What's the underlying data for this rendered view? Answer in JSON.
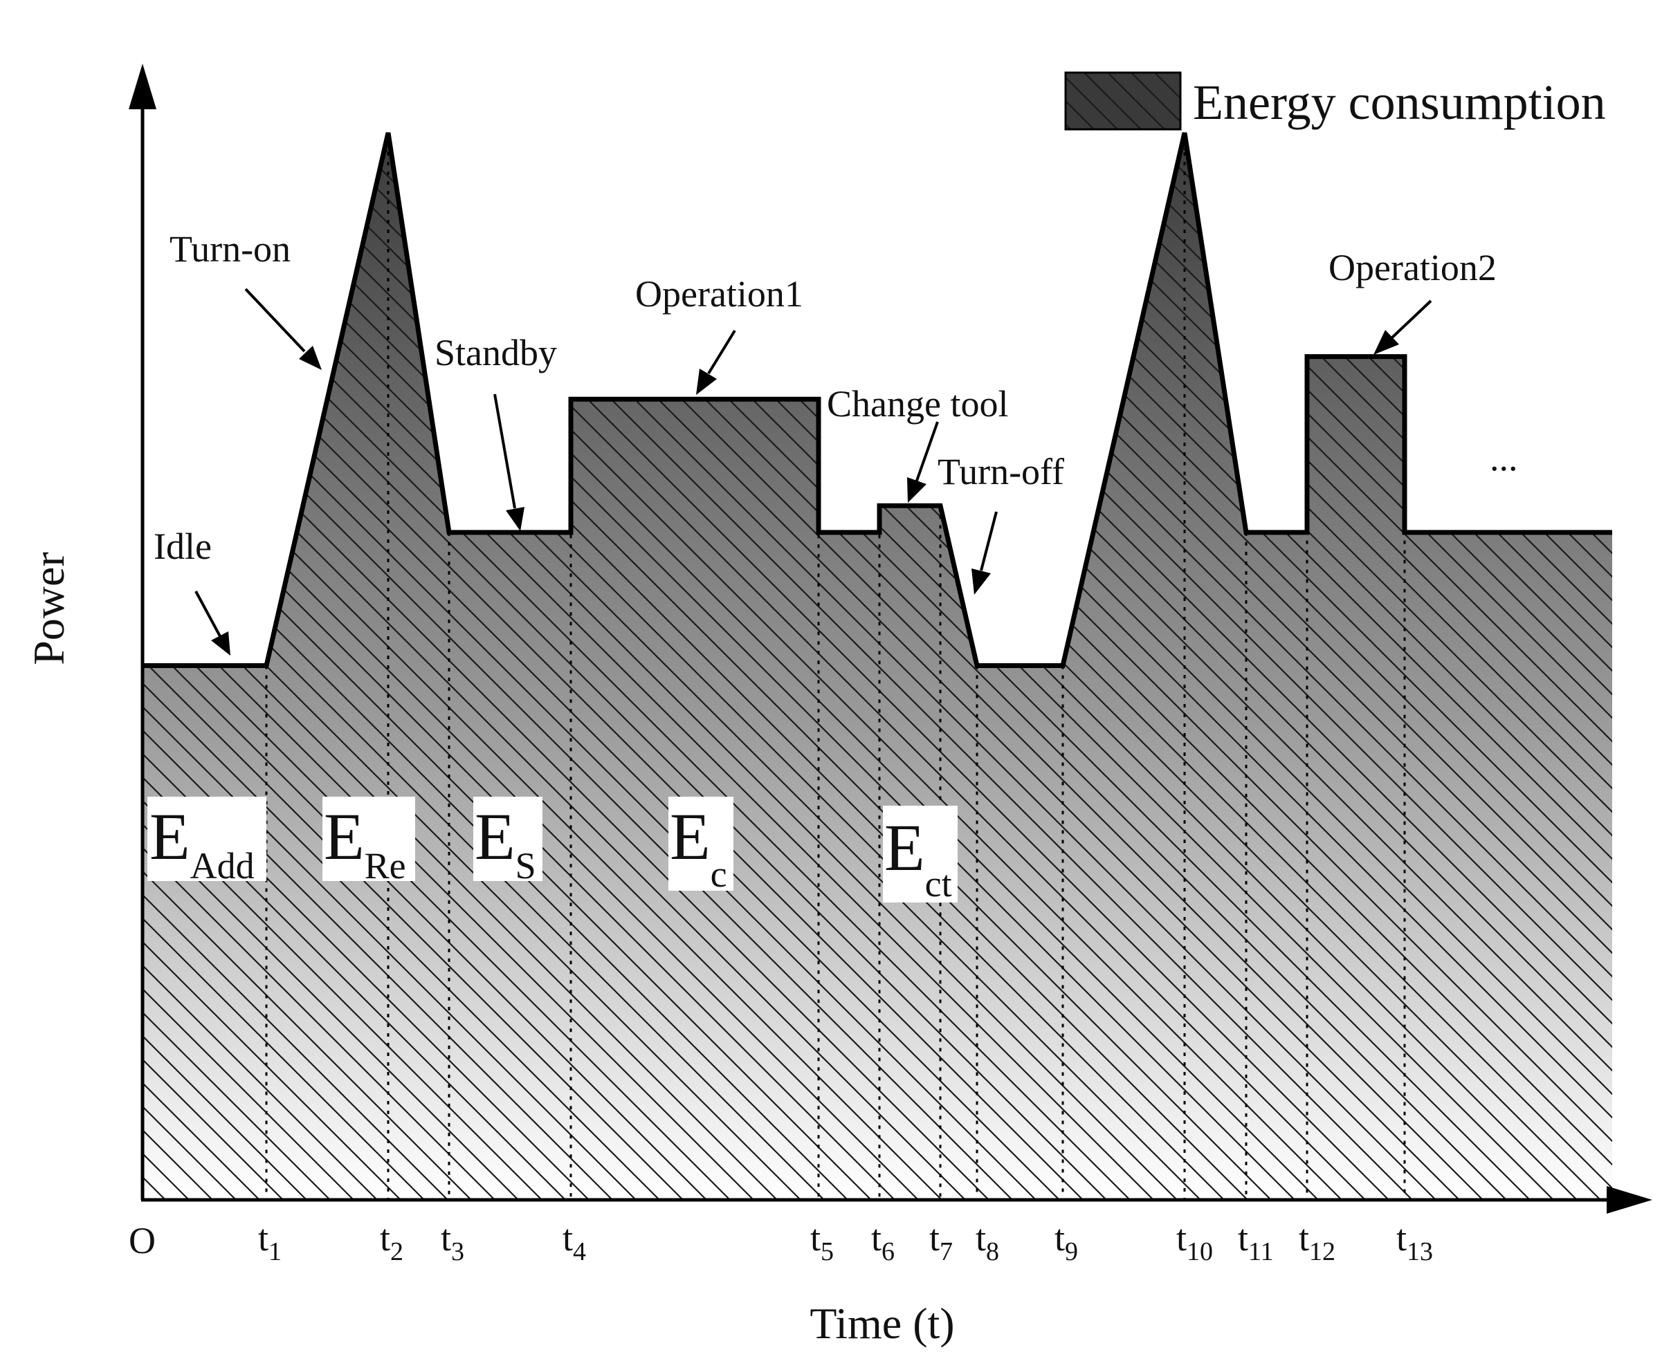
{
  "chart_data": {
    "type": "area",
    "title": "",
    "xlabel": "Time (t)",
    "ylabel": "Power",
    "origin_label": "O",
    "legend": {
      "label": "Energy consumption",
      "placement": "top-right"
    },
    "x_ticks": [
      {
        "base": "t",
        "sub": "1"
      },
      {
        "base": "t",
        "sub": "2"
      },
      {
        "base": "t",
        "sub": "3"
      },
      {
        "base": "t",
        "sub": "4"
      },
      {
        "base": "t",
        "sub": "5"
      },
      {
        "base": "t",
        "sub": "6"
      },
      {
        "base": "t",
        "sub": "7"
      },
      {
        "base": "t",
        "sub": "8"
      },
      {
        "base": "t",
        "sub": "9"
      },
      {
        "base": "t",
        "sub": "10"
      },
      {
        "base": "t",
        "sub": "11"
      },
      {
        "base": "t",
        "sub": "12"
      },
      {
        "base": "t",
        "sub": "13"
      }
    ],
    "x_tick_values": [
      1,
      2,
      3,
      4,
      5,
      6,
      7,
      8,
      9,
      10,
      11,
      12,
      13
    ],
    "xlim": [
      0,
      13.6
    ],
    "ylim": [
      0,
      1
    ],
    "power_profile": [
      {
        "t": 0,
        "p": 0.5
      },
      {
        "t": 1,
        "p": 0.5
      },
      {
        "t": 2,
        "p": 1.0
      },
      {
        "t": 3,
        "p": 0.625
      },
      {
        "t": 4,
        "p": 0.625
      },
      {
        "t": 4,
        "p": 0.75
      },
      {
        "t": 5,
        "p": 0.75
      },
      {
        "t": 5,
        "p": 0.625
      },
      {
        "t": 6,
        "p": 0.625
      },
      {
        "t": 6,
        "p": 0.65
      },
      {
        "t": 7,
        "p": 0.65
      },
      {
        "t": 8,
        "p": 0.5
      },
      {
        "t": 9,
        "p": 0.5
      },
      {
        "t": 10,
        "p": 1.0
      },
      {
        "t": 11,
        "p": 0.625
      },
      {
        "t": 12,
        "p": 0.625
      },
      {
        "t": 12,
        "p": 0.79
      },
      {
        "t": 13,
        "p": 0.79
      },
      {
        "t": 13,
        "p": 0.625
      },
      {
        "t": 13.6,
        "p": 0.625
      }
    ],
    "annotations": [
      {
        "name": "idle",
        "text": "Idle"
      },
      {
        "name": "turn-on",
        "text": "Turn-on"
      },
      {
        "name": "standby",
        "text": "Standby"
      },
      {
        "name": "operation1",
        "text": "Operation1"
      },
      {
        "name": "change-tool",
        "text": "Change tool"
      },
      {
        "name": "turn-off",
        "text": "Turn-off"
      },
      {
        "name": "operation2",
        "text": "Operation2"
      },
      {
        "name": "ellipsis",
        "text": "..."
      }
    ],
    "energy_regions": [
      {
        "base": "E",
        "sub": "Add"
      },
      {
        "base": "E",
        "sub": "Re"
      },
      {
        "base": "E",
        "sub": "S"
      },
      {
        "base": "E",
        "sub": "c"
      },
      {
        "base": "E",
        "sub": "ct"
      }
    ]
  },
  "colors": {
    "fill_top": "#3a3a3a",
    "fill_bottom": "#ffffff",
    "hatch": "#1a1a1a",
    "line": "#000000"
  }
}
